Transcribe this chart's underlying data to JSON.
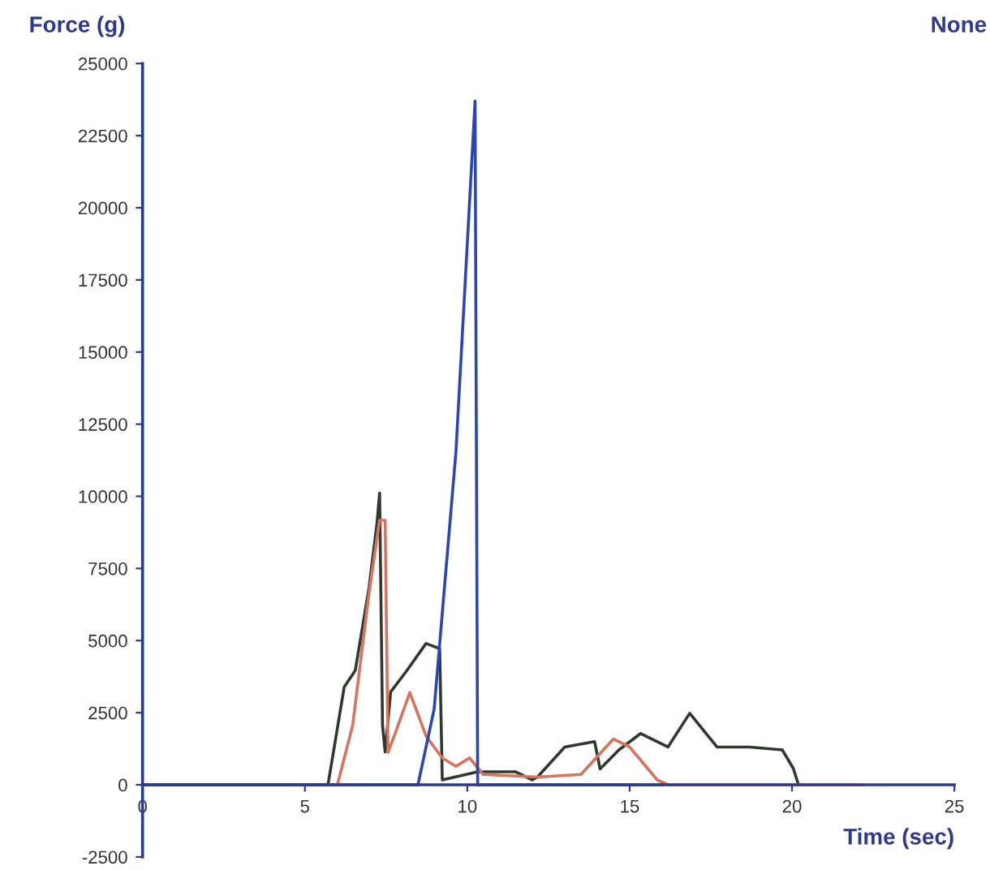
{
  "chart_data": {
    "type": "line",
    "xlabel": "Time (sec)",
    "ylabel": "Force (g)",
    "annotations": [
      "None"
    ],
    "xlim": [
      0,
      25
    ],
    "ylim": [
      -2500,
      25000
    ],
    "xticks": [
      0,
      5,
      10,
      15,
      20,
      25
    ],
    "yticks": [
      -2500,
      0,
      2500,
      5000,
      7500,
      10000,
      12500,
      15000,
      17500,
      20000,
      22500,
      25000
    ],
    "grid": false,
    "legend": false,
    "marker": "none",
    "line_style": "solid",
    "series": [
      {
        "color": "#2f3a2f",
        "x": [
          0,
          5.71,
          5.96,
          6.21,
          6.55,
          6.97,
          7.22,
          7.3,
          7.39,
          7.47,
          7.64,
          8.14,
          8.73,
          9.15,
          9.23,
          10.32,
          11.49,
          12.0,
          12.16,
          13.0,
          13.92,
          14.09,
          14.67,
          15.34,
          16.18,
          16.85,
          17.69,
          18.69,
          19.7,
          20.04,
          20.2
        ],
        "values": [
          0,
          0,
          1690,
          3390,
          3960,
          6800,
          9070,
          10110,
          2060,
          1140,
          3220,
          3960,
          4900,
          4720,
          170,
          450,
          450,
          170,
          270,
          1310,
          1500,
          550,
          1210,
          1780,
          1310,
          2480,
          1310,
          1310,
          1210,
          570,
          0
        ]
      },
      {
        "color": "#d9735f",
        "x": [
          0,
          6.0,
          6.47,
          6.97,
          7.3,
          7.47,
          7.56,
          7.81,
          8.23,
          8.73,
          9.23,
          9.65,
          10.07,
          10.49,
          12.16,
          13.5,
          14.5,
          15.0,
          15.85,
          16.2,
          22.2
        ],
        "values": [
          0,
          0,
          2060,
          6610,
          9170,
          9170,
          1120,
          1880,
          3200,
          1690,
          930,
          640,
          930,
          360,
          270,
          360,
          1590,
          1310,
          170,
          0,
          0
        ]
      },
      {
        "color": "#2b45b5",
        "x": [
          0,
          8.48,
          8.98,
          9.65,
          10.24,
          10.32,
          16.0
        ],
        "values": [
          0,
          0,
          2630,
          11530,
          23700,
          0,
          0
        ]
      }
    ]
  }
}
